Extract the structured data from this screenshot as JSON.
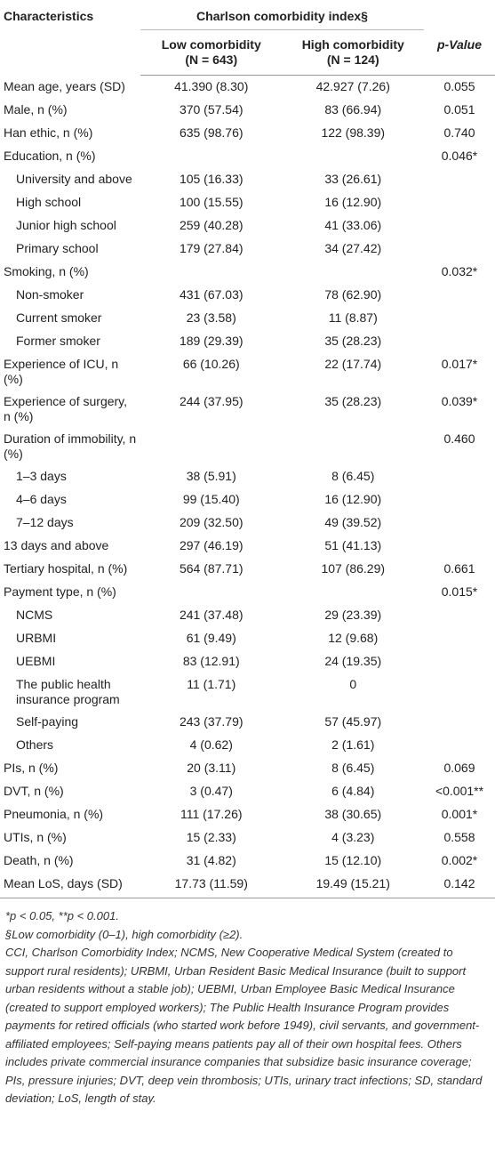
{
  "table": {
    "header": {
      "characteristics": "Characteristics",
      "group": "Charlson comorbidity index§",
      "low": [
        "Low comorbidity",
        "(N = 643)"
      ],
      "high": [
        "High comorbidity",
        "(N = 124)"
      ],
      "p": "p-Value"
    },
    "rows": [
      [
        "Mean age, years (SD)",
        "41.390 (8.30)",
        "42.927 (7.26)",
        "0.055"
      ],
      [
        "Male, n (%)",
        "370 (57.54)",
        "83 (66.94)",
        "0.051"
      ],
      [
        "Han ethic, n (%)",
        "635 (98.76)",
        "122 (98.39)",
        "0.740"
      ],
      [
        "Education, n (%)",
        null,
        null,
        "0.046*"
      ],
      [
        "University and above",
        "105 (16.33)",
        "33 (26.61)",
        null
      ],
      [
        "High school",
        "100 (15.55)",
        "16 (12.90)",
        null
      ],
      [
        "Junior high school",
        "259 (40.28)",
        "41 (33.06)",
        null
      ],
      [
        "Primary school",
        "179 (27.84)",
        "34 (27.42)",
        null
      ],
      [
        "Smoking, n (%)",
        null,
        null,
        "0.032*"
      ],
      [
        "Non-smoker",
        "431 (67.03)",
        "78 (62.90)",
        null
      ],
      [
        "Current smoker",
        "23 (3.58)",
        "11 (8.87)",
        null
      ],
      [
        "Former smoker",
        "189 (29.39)",
        "35 (28.23)",
        null
      ],
      [
        "Experience of ICU, n (%)",
        "66 (10.26)",
        "22 (17.74)",
        "0.017*"
      ],
      [
        "Experience of surgery, n (%)",
        "244 (37.95)",
        "35 (28.23)",
        "0.039*"
      ],
      [
        "Duration of immobility, n (%)",
        null,
        null,
        "0.460"
      ],
      [
        "1–3 days",
        "38 (5.91)",
        "8 (6.45)",
        null
      ],
      [
        "4–6 days",
        "99 (15.40)",
        "16 (12.90)",
        null
      ],
      [
        "7–12 days",
        "209 (32.50)",
        "49 (39.52)",
        null
      ],
      [
        "13 days and above",
        "297 (46.19)",
        "51 (41.13)",
        null
      ],
      [
        "Tertiary hospital, n (%)",
        "564 (87.71)",
        "107 (86.29)",
        "0.661"
      ],
      [
        "Payment type, n (%)",
        null,
        null,
        "0.015*"
      ],
      [
        "NCMS",
        "241 (37.48)",
        "29 (23.39)",
        null
      ],
      [
        "URBMI",
        "61 (9.49)",
        "12 (9.68)",
        null
      ],
      [
        "UEBMI",
        "83 (12.91)",
        "24 (19.35)",
        null
      ],
      [
        "The public health insurance program",
        "11 (1.71)",
        "0",
        null
      ],
      [
        "Self-paying",
        "243 (37.79)",
        "57 (45.97)",
        null
      ],
      [
        "Others",
        "4 (0.62)",
        "2 (1.61)",
        null
      ],
      [
        "PIs, n (%)",
        "20 (3.11)",
        "8 (6.45)",
        "0.069"
      ],
      [
        "DVT, n (%)",
        "3 (0.47)",
        "6 (4.84)",
        "<0.001**"
      ],
      [
        "Pneumonia, n (%)",
        "111 (17.26)",
        "38 (30.65)",
        "0.001*"
      ],
      [
        "UTIs, n (%)",
        "15 (2.33)",
        "4 (3.23)",
        "0.558"
      ],
      [
        "Death, n (%)",
        "31 (4.82)",
        "15 (12.10)",
        "0.002*"
      ],
      [
        "Mean LoS, days (SD)",
        "17.73 (11.59)",
        "19.49 (15.21)",
        "0.142"
      ]
    ]
  },
  "footnotes": [
    "*p < 0.05, **p < 0.001.",
    "§Low comorbidity (0–1), high comorbidity (≥2).",
    "CCI, Charlson Comorbidity Index; NCMS, New Cooperative Medical System (created to support rural residents); URBMI, Urban Resident Basic Medical Insurance (built to support urban residents without a stable job); UEBMI, Urban Employee Basic Medical Insurance (created to support employed workers); The Public Health Insurance Program provides payments for retired officials (who started work before 1949), civil servants, and government-affiliated employees; Self-paying means patients pay all of their own hospital fees. Others includes private commercial insurance companies that subsidize basic insurance coverage; PIs, pressure injuries; DVT, deep vein thrombosis; UTIs, urinary tract infections; SD, standard deviation; LoS, length of stay."
  ]
}
